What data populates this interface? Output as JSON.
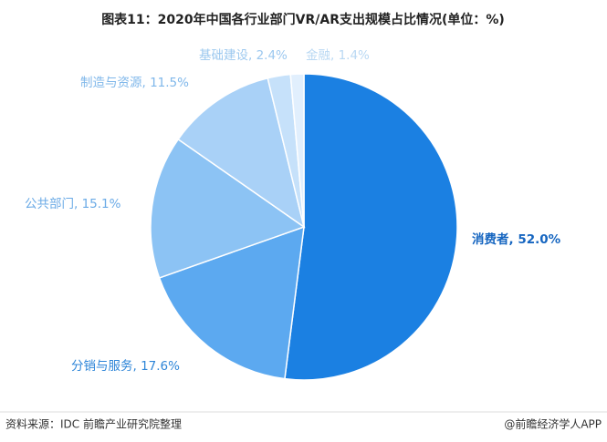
{
  "chart_data": {
    "type": "pie",
    "title": "图表11：2020年中国各行业部门VR/AR支出规模占比情况(单位：%)",
    "values": [
      52.0,
      17.6,
      15.1,
      11.5,
      2.4,
      1.4
    ],
    "value_labels": [
      "消费者, 52.0%",
      "分销与服务, 17.6%",
      "公共部门, 15.1%",
      "制造与资源, 11.5%",
      "基础建设, 2.4%",
      "金融, 1.4%"
    ],
    "colors": [
      "#1b80e2",
      "#5ca9f0",
      "#8cc3f4",
      "#a9d1f7",
      "#c6e1fa",
      "#e1effd"
    ],
    "label_colors": [
      "#1565c0",
      "#2f86d8",
      "#6aaae6",
      "#7fb7ea",
      "#9cc8ef",
      "#b9d8f3"
    ],
    "source": "资料来源：IDC 前瞻产业研究院整理",
    "credit": "@前瞻经济学人APP"
  }
}
